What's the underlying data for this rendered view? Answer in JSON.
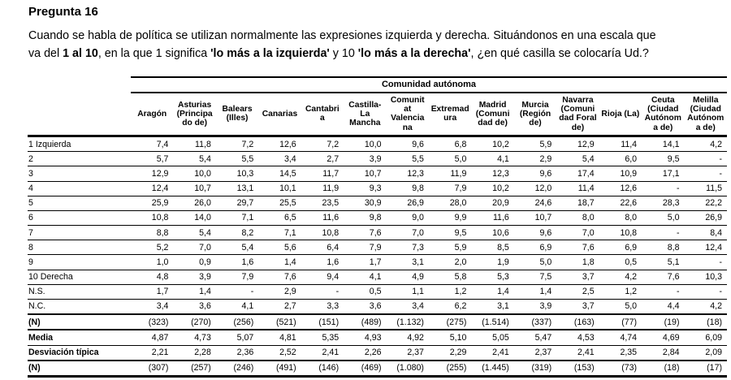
{
  "header": {
    "title": "Pregunta 16"
  },
  "question": {
    "segments": [
      {
        "text": "Cuando se habla de política se utilizan normalmente las expresiones izquierda y derecha. Situándonos en una escala que",
        "bold": false
      },
      {
        "br": true
      },
      {
        "text": "va del ",
        "bold": false
      },
      {
        "text": "1 al 10",
        "bold": true
      },
      {
        "text": ", en la que 1 significa ",
        "bold": false
      },
      {
        "text": "'lo más a la izquierda'",
        "bold": true
      },
      {
        "text": " y 10 ",
        "bold": false
      },
      {
        "text": "'lo más a la derecha'",
        "bold": true
      },
      {
        "text": ", ¿en qué casilla se colocaría Ud.?",
        "bold": false
      }
    ]
  },
  "table": {
    "group_header": "Comunidad autónoma",
    "columns": [
      "Aragón",
      "Asturias\n(Principa\ndo de)",
      "Balears\n(Illes)",
      "Canarias",
      "Cantabri\na",
      "Castilla-\nLa\nMancha",
      "Comunit\nat\nValencia\nna",
      "Extremad\nura",
      "Madrid\n(Comuni\ndad de)",
      "Murcia\n(Región\nde)",
      "Navarra\n(Comuni\ndad Foral\nde)",
      "Rioja (La)",
      "Ceuta\n(Ciudad\nAutónom\na de)",
      "Melilla\n(Ciudad\nAutónom\na de)"
    ],
    "rows": [
      {
        "label": "1 Izquierda",
        "bold": false,
        "values": [
          "7,4",
          "11,8",
          "7,2",
          "12,6",
          "7,2",
          "10,0",
          "9,6",
          "6,8",
          "10,2",
          "5,9",
          "12,9",
          "11,4",
          "14,1",
          "4,2"
        ]
      },
      {
        "label": "2",
        "bold": false,
        "values": [
          "5,7",
          "5,4",
          "5,5",
          "3,4",
          "2,7",
          "3,9",
          "5,5",
          "5,0",
          "4,1",
          "2,9",
          "5,4",
          "6,0",
          "9,5",
          "-"
        ]
      },
      {
        "label": "3",
        "bold": false,
        "values": [
          "12,9",
          "10,0",
          "10,3",
          "14,5",
          "11,7",
          "10,7",
          "12,3",
          "11,9",
          "12,3",
          "9,6",
          "17,4",
          "10,9",
          "17,1",
          "-"
        ]
      },
      {
        "label": "4",
        "bold": false,
        "values": [
          "12,4",
          "10,7",
          "13,1",
          "10,1",
          "11,9",
          "9,3",
          "9,8",
          "7,9",
          "10,2",
          "12,0",
          "11,4",
          "12,6",
          "-",
          "11,5"
        ]
      },
      {
        "label": "5",
        "bold": false,
        "values": [
          "25,9",
          "26,0",
          "29,7",
          "25,5",
          "23,5",
          "30,9",
          "26,9",
          "28,0",
          "20,9",
          "24,6",
          "18,7",
          "22,6",
          "28,3",
          "22,2"
        ]
      },
      {
        "label": "6",
        "bold": false,
        "values": [
          "10,8",
          "14,0",
          "7,1",
          "6,5",
          "11,6",
          "9,8",
          "9,0",
          "9,9",
          "11,6",
          "10,7",
          "8,0",
          "8,0",
          "5,0",
          "26,9"
        ]
      },
      {
        "label": "7",
        "bold": false,
        "values": [
          "8,8",
          "5,4",
          "8,2",
          "7,1",
          "10,8",
          "7,6",
          "7,0",
          "9,5",
          "10,6",
          "9,6",
          "7,0",
          "10,8",
          "-",
          "8,4"
        ]
      },
      {
        "label": "8",
        "bold": false,
        "values": [
          "5,2",
          "7,0",
          "5,4",
          "5,6",
          "6,4",
          "7,9",
          "7,3",
          "5,9",
          "8,5",
          "6,9",
          "7,6",
          "6,9",
          "8,8",
          "12,4"
        ]
      },
      {
        "label": "9",
        "bold": false,
        "values": [
          "1,0",
          "0,9",
          "1,6",
          "1,4",
          "1,6",
          "1,7",
          "3,1",
          "2,0",
          "1,9",
          "5,0",
          "1,8",
          "0,5",
          "5,1",
          "-"
        ]
      },
      {
        "label": "10 Derecha",
        "bold": false,
        "values": [
          "4,8",
          "3,9",
          "7,9",
          "7,6",
          "9,4",
          "4,1",
          "4,9",
          "5,8",
          "5,3",
          "7,5",
          "3,7",
          "4,2",
          "7,6",
          "10,3"
        ]
      },
      {
        "label": "N.S.",
        "bold": false,
        "values": [
          "1,7",
          "1,4",
          "-",
          "2,9",
          "-",
          "0,5",
          "1,1",
          "1,2",
          "1,4",
          "1,4",
          "2,5",
          "1,2",
          "-",
          "-"
        ]
      },
      {
        "label": "N.C.",
        "bold": false,
        "values": [
          "3,4",
          "3,6",
          "4,1",
          "2,7",
          "3,3",
          "3,6",
          "3,4",
          "6,2",
          "3,1",
          "3,9",
          "3,7",
          "5,0",
          "4,4",
          "4,2"
        ]
      },
      {
        "label": "(N)",
        "bold": true,
        "values": [
          "(323)",
          "(270)",
          "(256)",
          "(521)",
          "(151)",
          "(489)",
          "(1.132)",
          "(275)",
          "(1.514)",
          "(337)",
          "(163)",
          "(77)",
          "(19)",
          "(18)"
        ]
      },
      {
        "label": "Media",
        "bold": true,
        "values": [
          "4,87",
          "4,73",
          "5,07",
          "4,81",
          "5,35",
          "4,93",
          "4,92",
          "5,10",
          "5,05",
          "5,47",
          "4,53",
          "4,74",
          "4,69",
          "6,09"
        ]
      },
      {
        "label": "Desviación típica",
        "bold": true,
        "values": [
          "2,21",
          "2,28",
          "2,36",
          "2,52",
          "2,41",
          "2,26",
          "2,37",
          "2,29",
          "2,41",
          "2,37",
          "2,41",
          "2,35",
          "2,84",
          "2,09"
        ]
      },
      {
        "label": "(N)",
        "bold": true,
        "values": [
          "(307)",
          "(257)",
          "(246)",
          "(491)",
          "(146)",
          "(469)",
          "(1.080)",
          "(255)",
          "(1.445)",
          "(319)",
          "(153)",
          "(73)",
          "(18)",
          "(17)"
        ]
      }
    ]
  }
}
